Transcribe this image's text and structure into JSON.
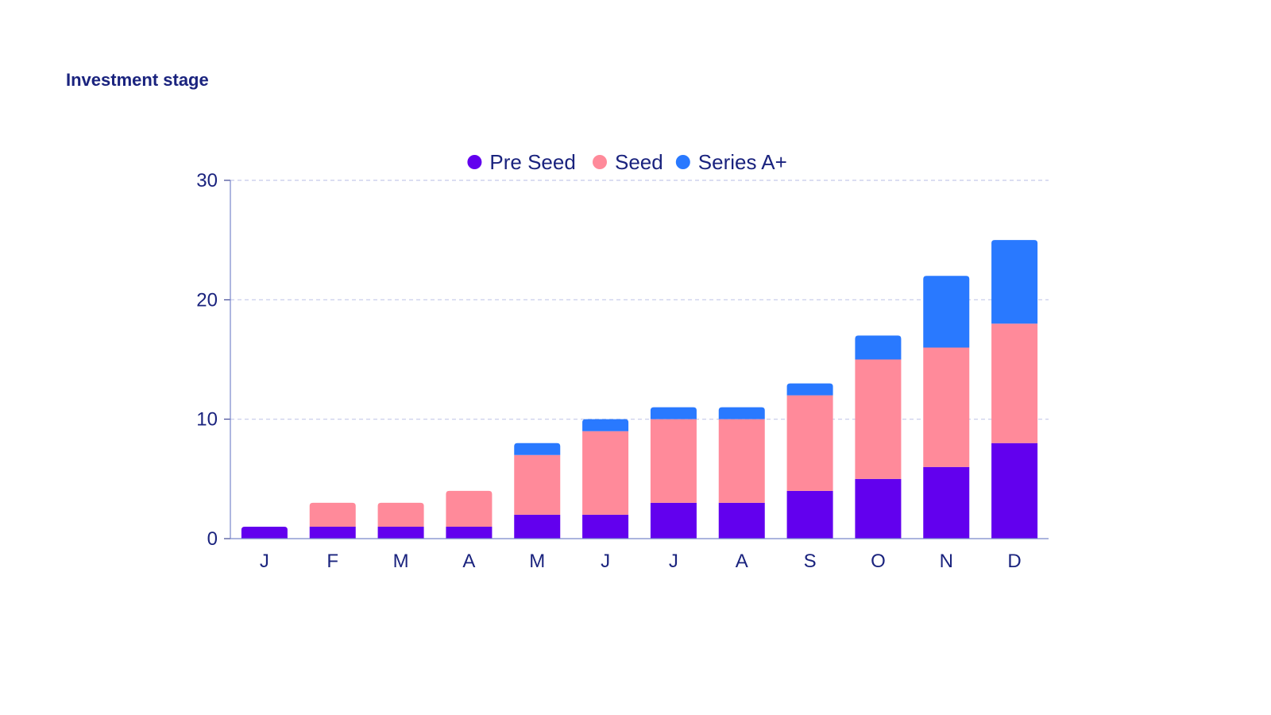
{
  "page": {
    "title": "Investment stage"
  },
  "chart_data": {
    "type": "bar",
    "stacked": true,
    "title": "",
    "xlabel": "",
    "ylabel": "",
    "categories": [
      "J",
      "F",
      "M",
      "A",
      "M",
      "J",
      "J",
      "A",
      "S",
      "O",
      "N",
      "D"
    ],
    "series": [
      {
        "name": "Pre Seed",
        "color": "#6200ee",
        "values": [
          1,
          1,
          1,
          1,
          2,
          2,
          3,
          3,
          4,
          5,
          6,
          8
        ]
      },
      {
        "name": "Seed",
        "color": "#ff8a9a",
        "values": [
          0,
          2,
          2,
          3,
          5,
          7,
          7,
          7,
          8,
          10,
          10,
          10
        ]
      },
      {
        "name": "Series A+",
        "color": "#2979ff",
        "values": [
          0,
          0,
          0,
          0,
          1,
          1,
          1,
          1,
          1,
          2,
          6,
          7
        ]
      }
    ],
    "ylim": [
      0,
      30
    ],
    "yticks": [
      0,
      10,
      20,
      30
    ],
    "grid": true,
    "legend_position": "top-center",
    "axis_color": "#1a237e",
    "grid_color": "#c5cae9"
  }
}
